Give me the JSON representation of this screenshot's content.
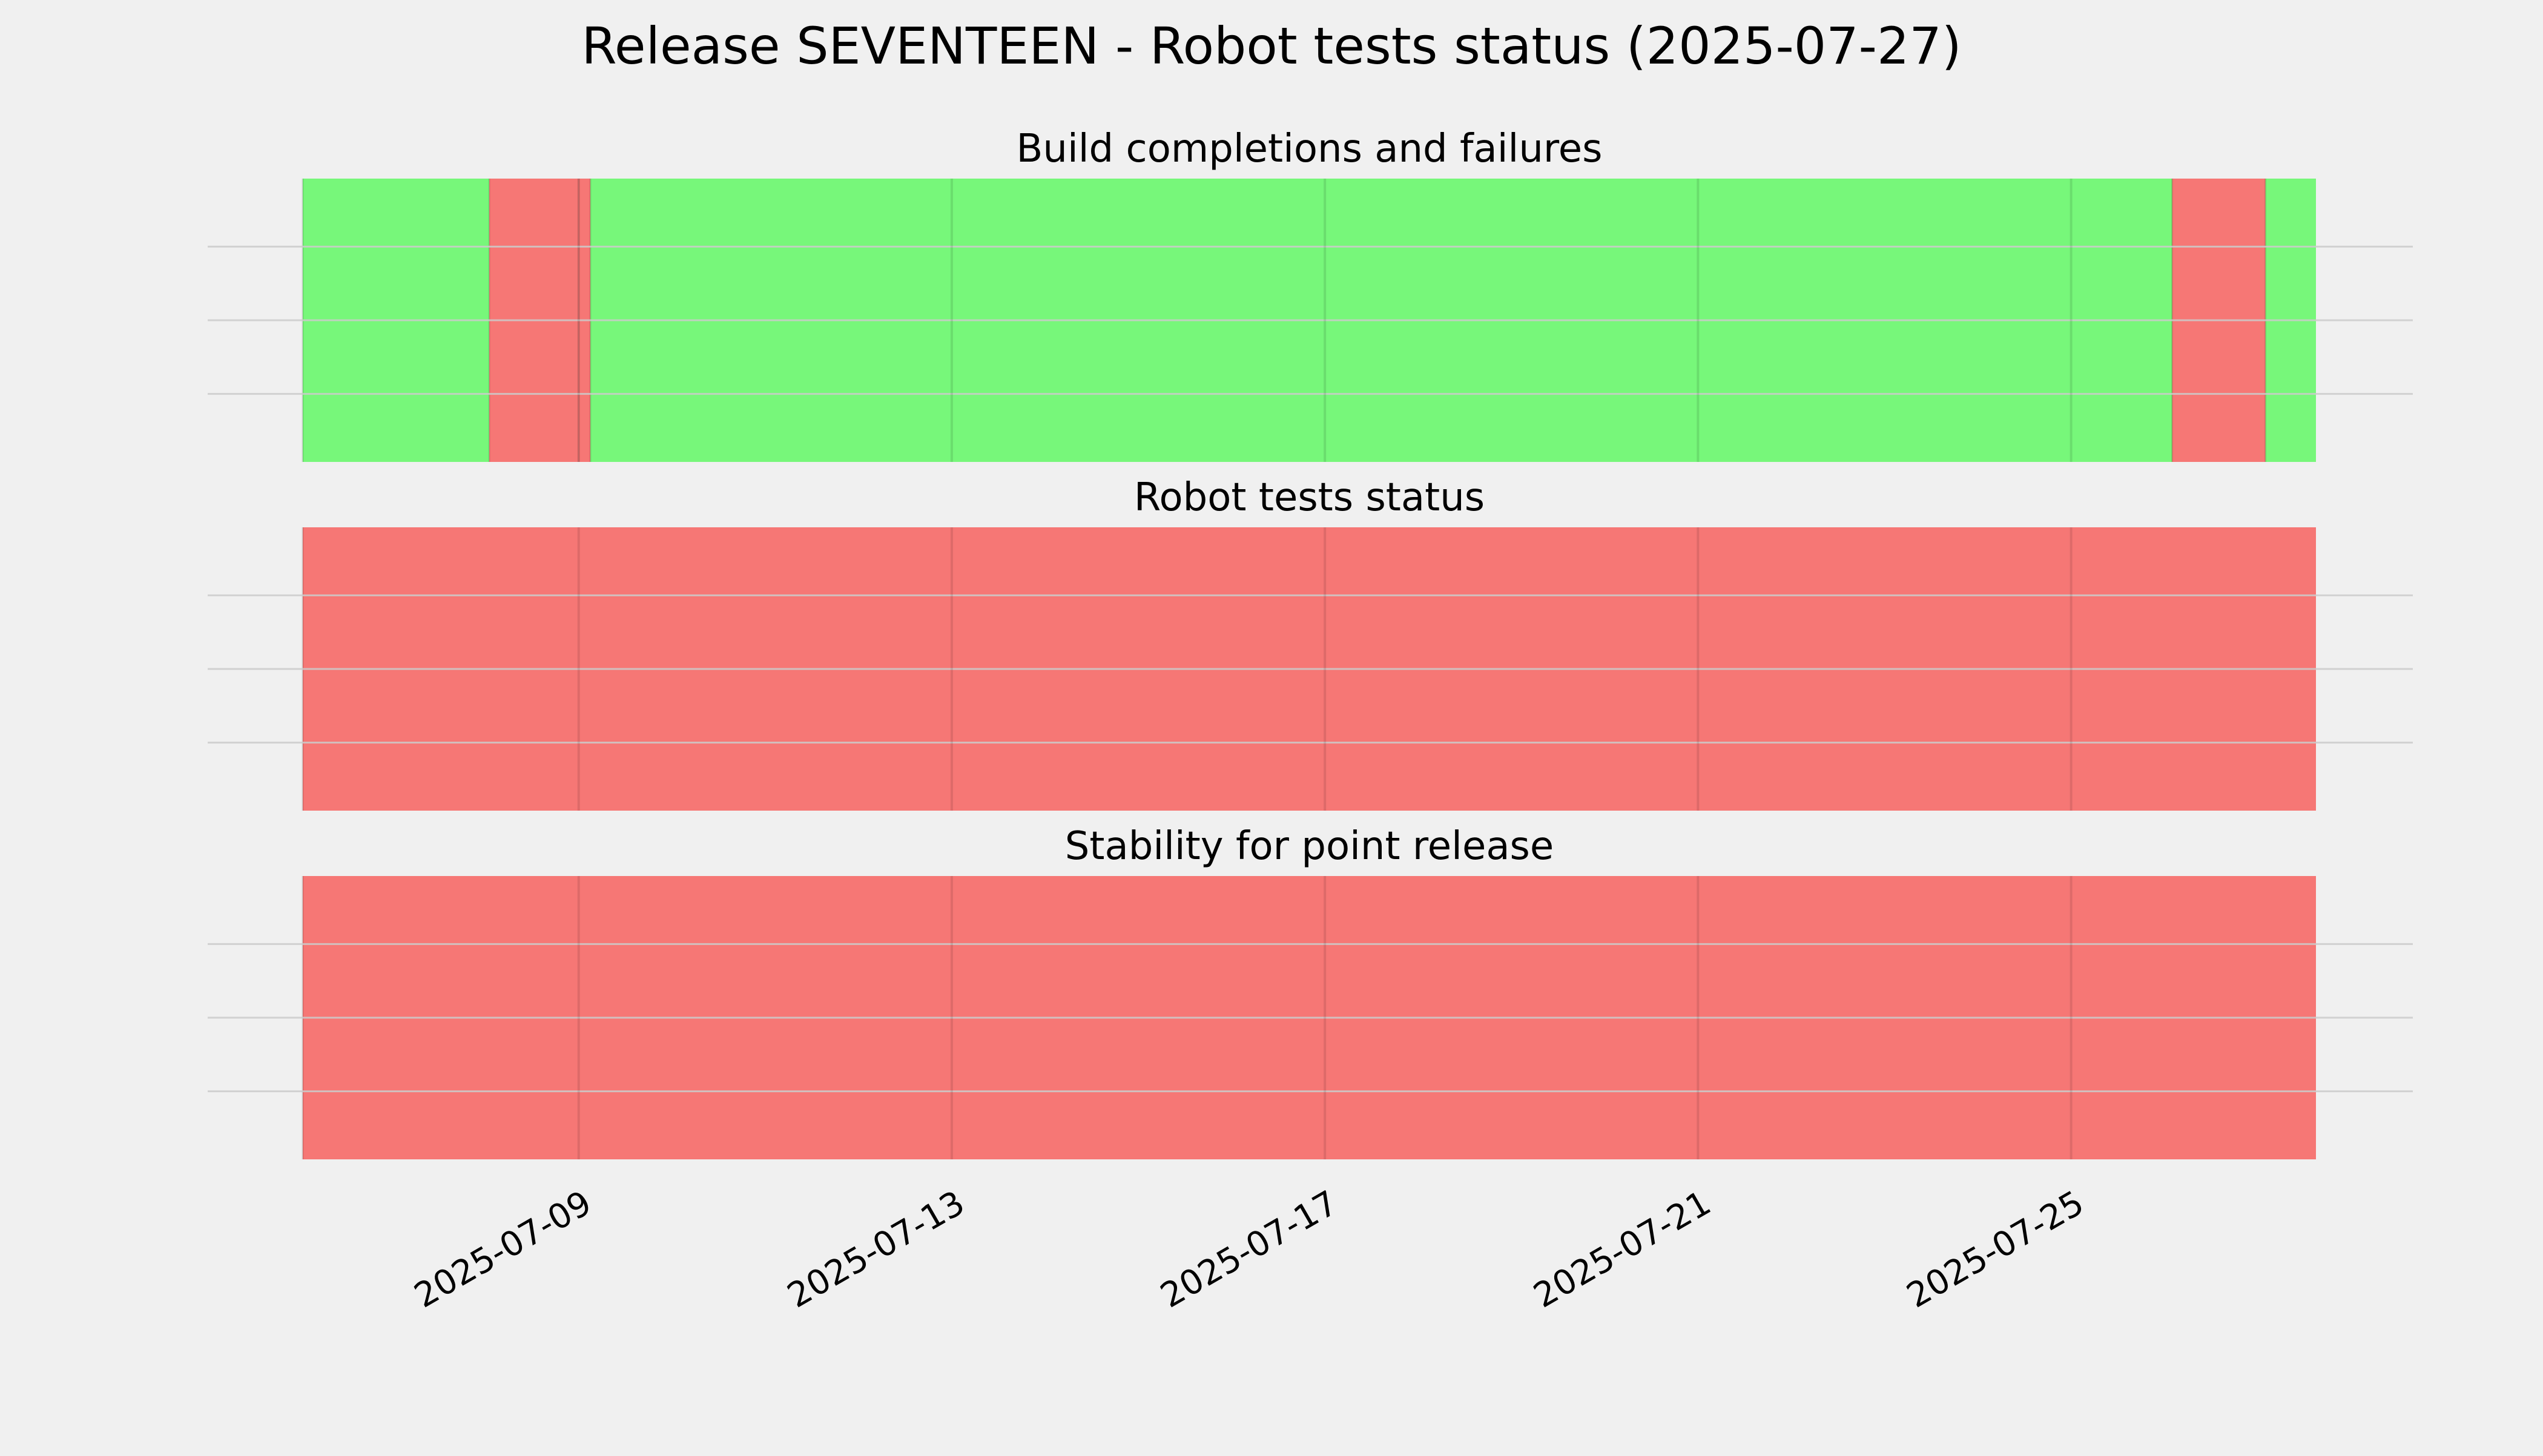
{
  "title": "Release SEVENTEEN - Robot tests status (2025-07-27)",
  "colors": {
    "background": "#f0f0f0",
    "pass": "#77f77a",
    "fail": "#f67775",
    "gridline": "#cbcbcb"
  },
  "chart_data": {
    "type": "bar",
    "xaxis": {
      "type": "date",
      "range": [
        "2025-07-06T01:00",
        "2025-07-27T15:00"
      ],
      "tick_labels": [
        "2025-07-09",
        "2025-07-13",
        "2025-07-17",
        "2025-07-21",
        "2025-07-25"
      ]
    },
    "grid": true,
    "panels": [
      {
        "title": "Build completions and failures",
        "segments": [
          {
            "start": "2025-07-06T01:00",
            "end": "2025-07-08T01:00",
            "status": "pass"
          },
          {
            "start": "2025-07-08T01:00",
            "end": "2025-07-09T00:00",
            "status": "fail"
          },
          {
            "start": "2025-07-09T00:00",
            "end": "2025-07-09T03:00",
            "status": "fail"
          },
          {
            "start": "2025-07-09T03:00",
            "end": "2025-07-26T02:00",
            "status": "pass"
          },
          {
            "start": "2025-07-26T02:00",
            "end": "2025-07-27T02:00",
            "status": "fail"
          },
          {
            "start": "2025-07-27T02:00",
            "end": "2025-07-27T15:00",
            "status": "pass"
          }
        ]
      },
      {
        "title": "Robot tests status",
        "segments": [
          {
            "start": "2025-07-06T01:00",
            "end": "2025-07-27T15:00",
            "status": "fail"
          }
        ]
      },
      {
        "title": "Stability for point release",
        "segments": [
          {
            "start": "2025-07-06T01:00",
            "end": "2025-07-27T15:00",
            "status": "fail"
          }
        ]
      }
    ]
  }
}
